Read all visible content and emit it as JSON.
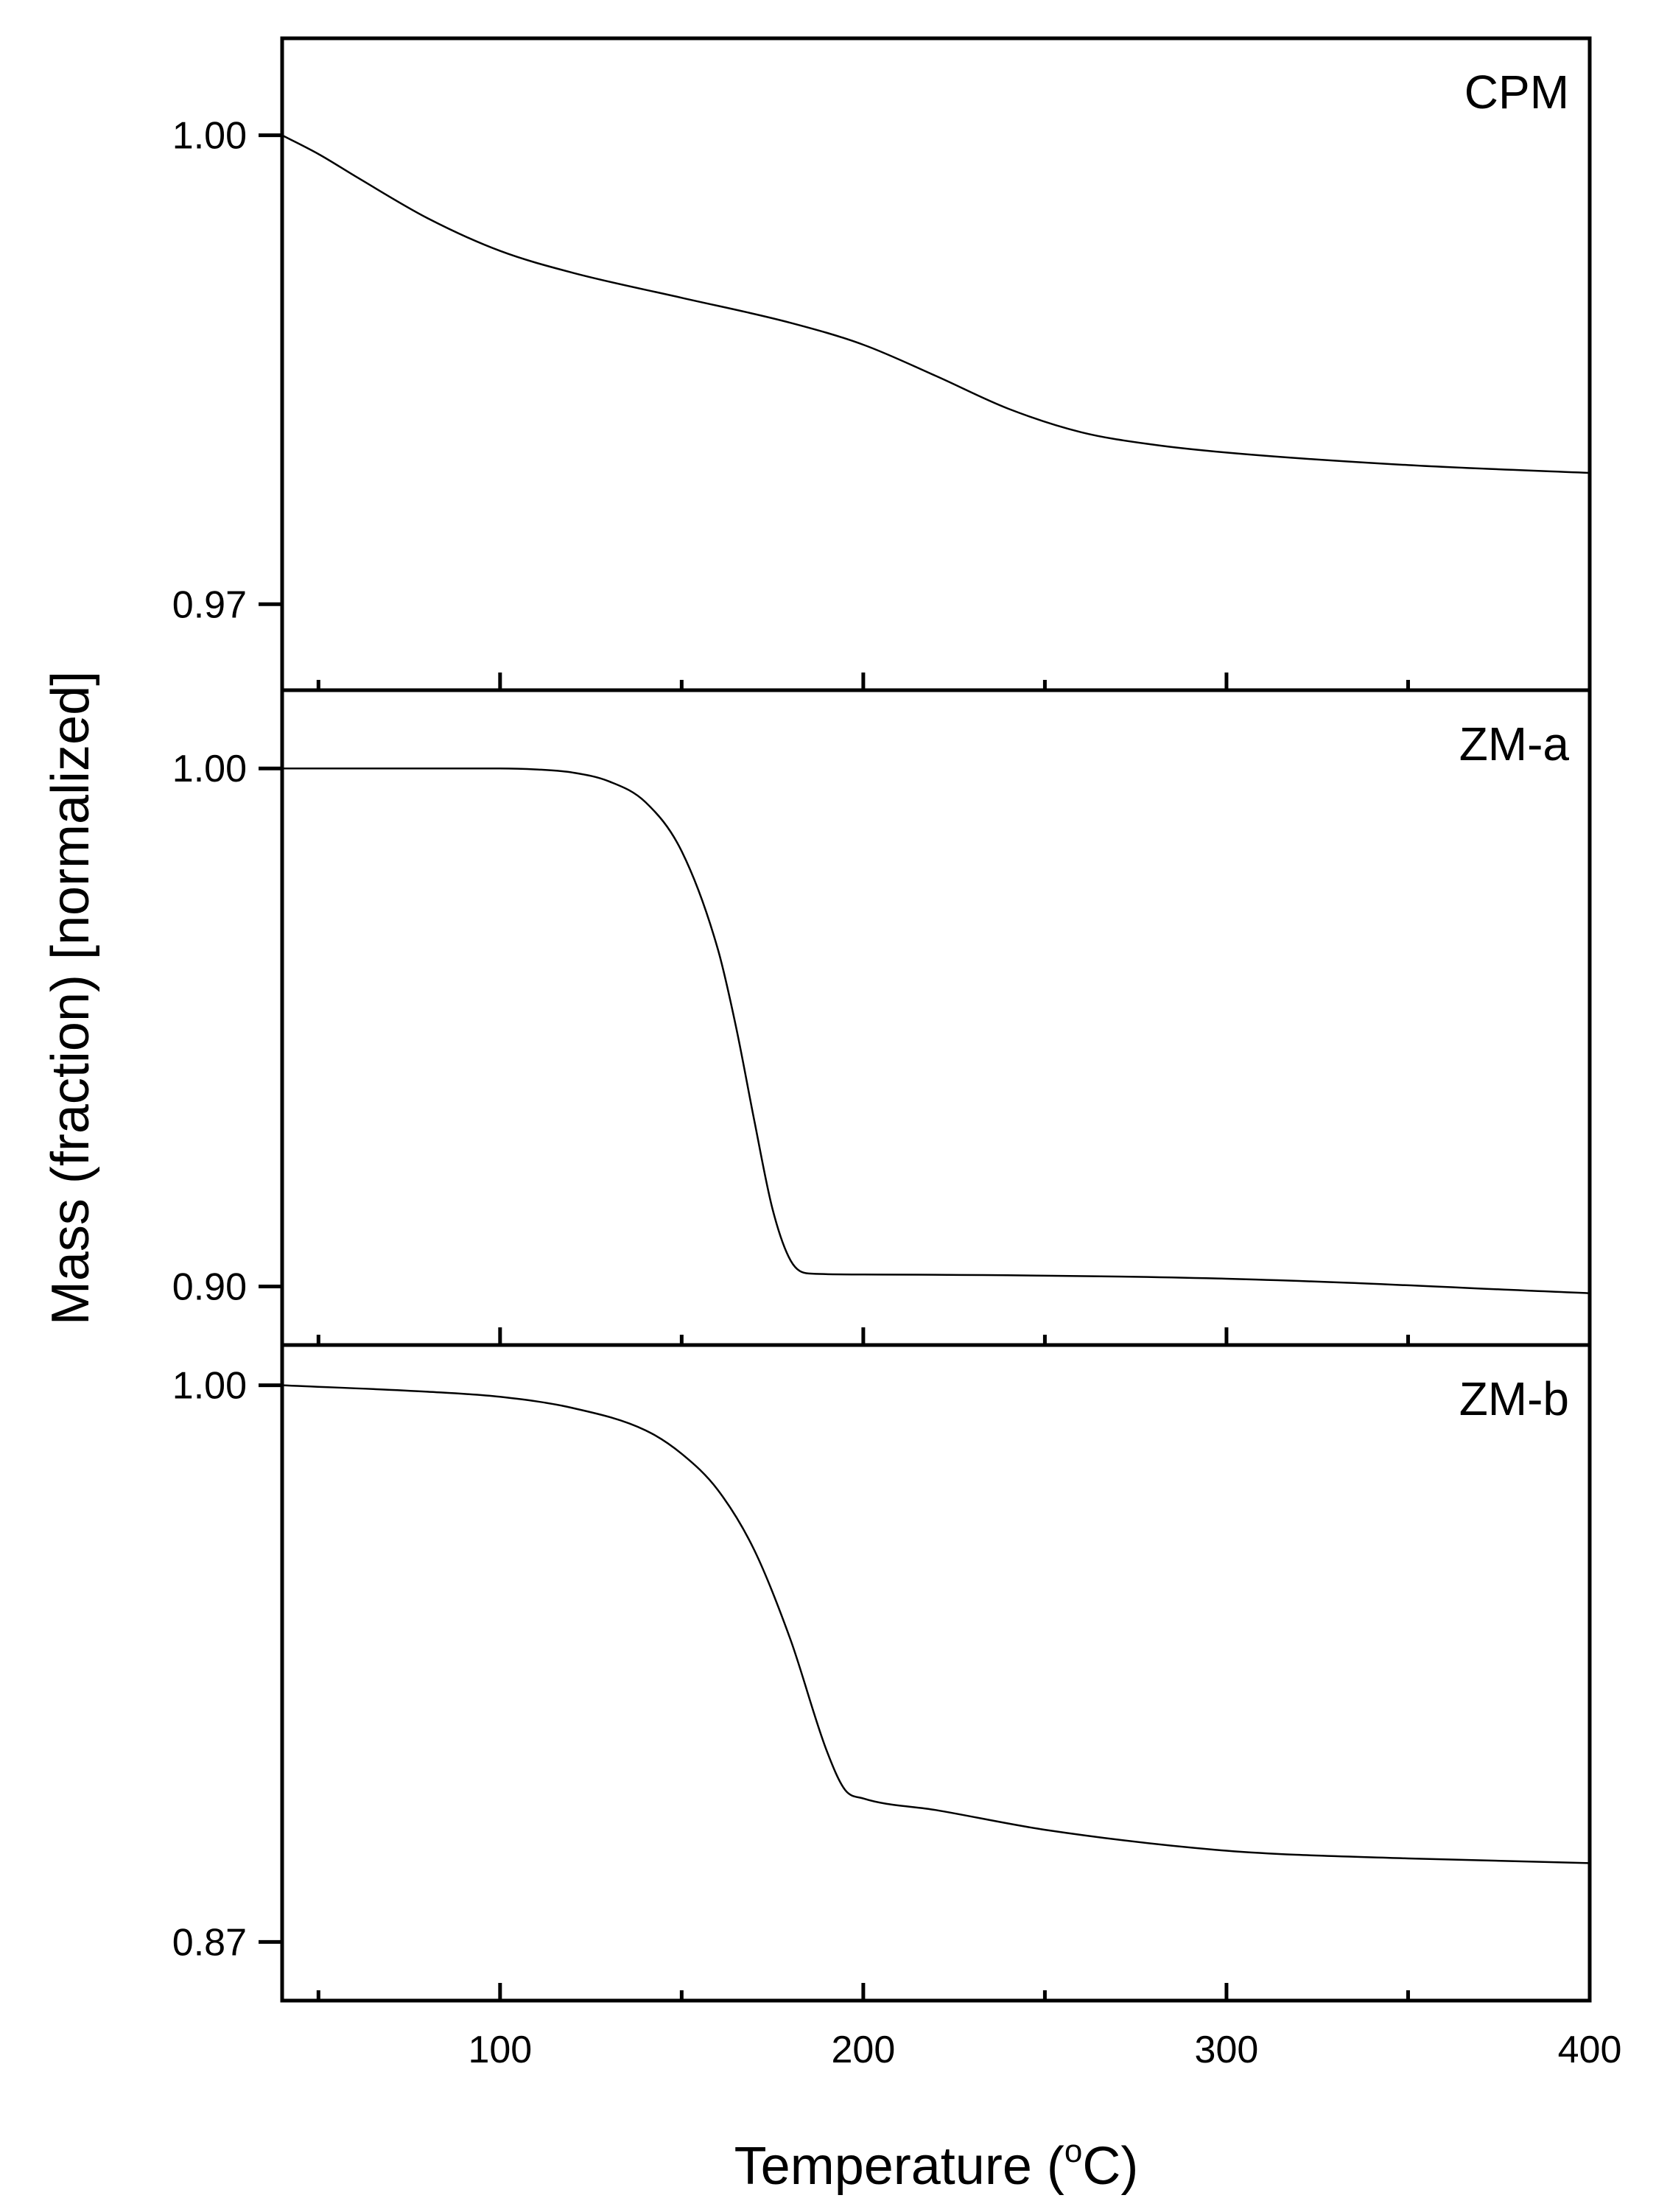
{
  "chart_data": {
    "type": "line",
    "xlabel_main": "Temperature (",
    "xlabel_sup": "o",
    "xlabel_end": "C)",
    "ylabel": "Mass (fraction) [normalized]",
    "xlim": [
      40,
      400
    ],
    "x_ticks": [
      100,
      200,
      300,
      400
    ],
    "x_minor_ticks": [
      50,
      150,
      250,
      350
    ],
    "x_tick_labels": [
      "100",
      "200",
      "300",
      "400"
    ],
    "panels": [
      {
        "label": "CPM",
        "ylim": [
          0.9645,
          1.0062
        ],
        "y_ticks": [
          1.0,
          0.97
        ],
        "y_tick_labels": [
          "1.00",
          "0.97"
        ],
        "x": [
          40,
          50,
          60,
          80,
          100,
          120,
          150,
          180,
          200,
          220,
          240,
          260,
          280,
          300,
          350,
          400
        ],
        "y": [
          1.0,
          0.9988,
          0.9974,
          0.9947,
          0.9926,
          0.9912,
          0.9896,
          0.988,
          0.9866,
          0.9846,
          0.9825,
          0.981,
          0.9802,
          0.9797,
          0.9789,
          0.9784
        ]
      },
      {
        "label": "ZM-a",
        "ylim": [
          0.8887,
          1.0151
        ],
        "y_ticks": [
          1.0,
          0.9
        ],
        "y_tick_labels": [
          "1.00",
          "0.90"
        ],
        "x": [
          40,
          100,
          110,
          120,
          130,
          140,
          150,
          160,
          165,
          170,
          175,
          180,
          185,
          200,
          300,
          400
        ],
        "y": [
          1.0,
          1.0,
          0.9998,
          0.9992,
          0.9975,
          0.9935,
          0.984,
          0.965,
          0.95,
          0.932,
          0.915,
          0.905,
          0.9025,
          0.9023,
          0.9015,
          0.8987
        ]
      },
      {
        "label": "ZM-b",
        "ylim": [
          0.8563,
          1.0094
        ],
        "y_ticks": [
          1.0,
          0.87
        ],
        "y_tick_labels": [
          "1.00",
          "0.87"
        ],
        "x": [
          40,
          80,
          100,
          120,
          140,
          150,
          160,
          170,
          180,
          190,
          195,
          200,
          220,
          250,
          300,
          350,
          400
        ],
        "y": [
          1.0,
          0.9985,
          0.9973,
          0.9947,
          0.9895,
          0.984,
          0.9755,
          0.9615,
          0.9405,
          0.9145,
          0.9055,
          0.9035,
          0.9008,
          0.8962,
          0.8913,
          0.8895,
          0.8884
        ]
      }
    ]
  }
}
